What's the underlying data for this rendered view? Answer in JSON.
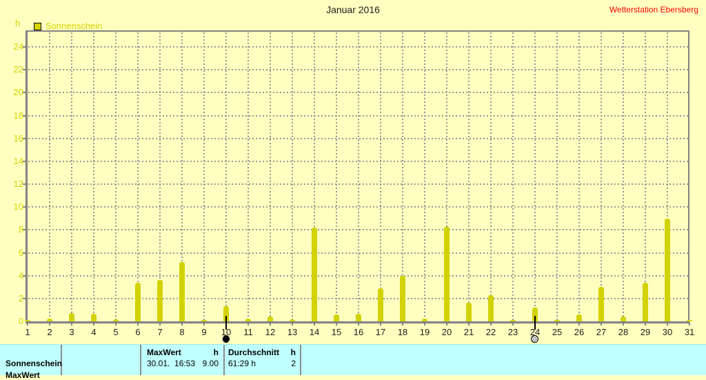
{
  "header": {
    "title": "Januar 2016",
    "station": "Wetterstation Ebersberg"
  },
  "legend": {
    "unit": "h",
    "series_label": "Sonnenschein"
  },
  "colors": {
    "background": "#FFFFC0",
    "bar": "#D2D200",
    "axis_text": "#D4D400",
    "grid": "#979797",
    "frame": "#828282",
    "station_text": "#FF0000",
    "footer_background": "#C0FFFF"
  },
  "chart_data": {
    "type": "bar",
    "title": "Januar 2016",
    "xlabel": "",
    "ylabel": "h",
    "ylim": [
      0,
      24
    ],
    "yticks": [
      0,
      2,
      4,
      6,
      8,
      10,
      12,
      14,
      16,
      18,
      20,
      22,
      24
    ],
    "grid": "dashed",
    "legend_position": "top-left",
    "categories": [
      1,
      2,
      3,
      4,
      5,
      6,
      7,
      8,
      9,
      10,
      11,
      12,
      13,
      14,
      15,
      16,
      17,
      18,
      19,
      20,
      21,
      22,
      23,
      24,
      25,
      26,
      27,
      28,
      29,
      30,
      31
    ],
    "series": [
      {
        "name": "Sonnenschein",
        "values": [
          0.1,
          0.25,
          0.7,
          0.65,
          0.2,
          3.4,
          3.6,
          5.2,
          0.1,
          1.3,
          0.25,
          0.45,
          0.2,
          8.2,
          0.6,
          0.65,
          2.9,
          4.0,
          0.25,
          8.25,
          1.6,
          2.3,
          0.15,
          1.2,
          0.15,
          0.6,
          3.0,
          0.45,
          3.4,
          9.0,
          0.1
        ]
      }
    ],
    "markers": [
      {
        "day": 10,
        "type": "new-moon"
      },
      {
        "day": 24,
        "type": "full-moon"
      }
    ]
  },
  "footer": {
    "series_label": "Sonnenschein",
    "clipped_row_label": "MaxWert",
    "max": {
      "label": "MaxWert",
      "unit": "h",
      "date": "30.01.  16:53",
      "value": "9.00"
    },
    "avg": {
      "label": "Durchschnitt",
      "unit": "h",
      "sum": "61:29 h",
      "value": "2"
    }
  }
}
